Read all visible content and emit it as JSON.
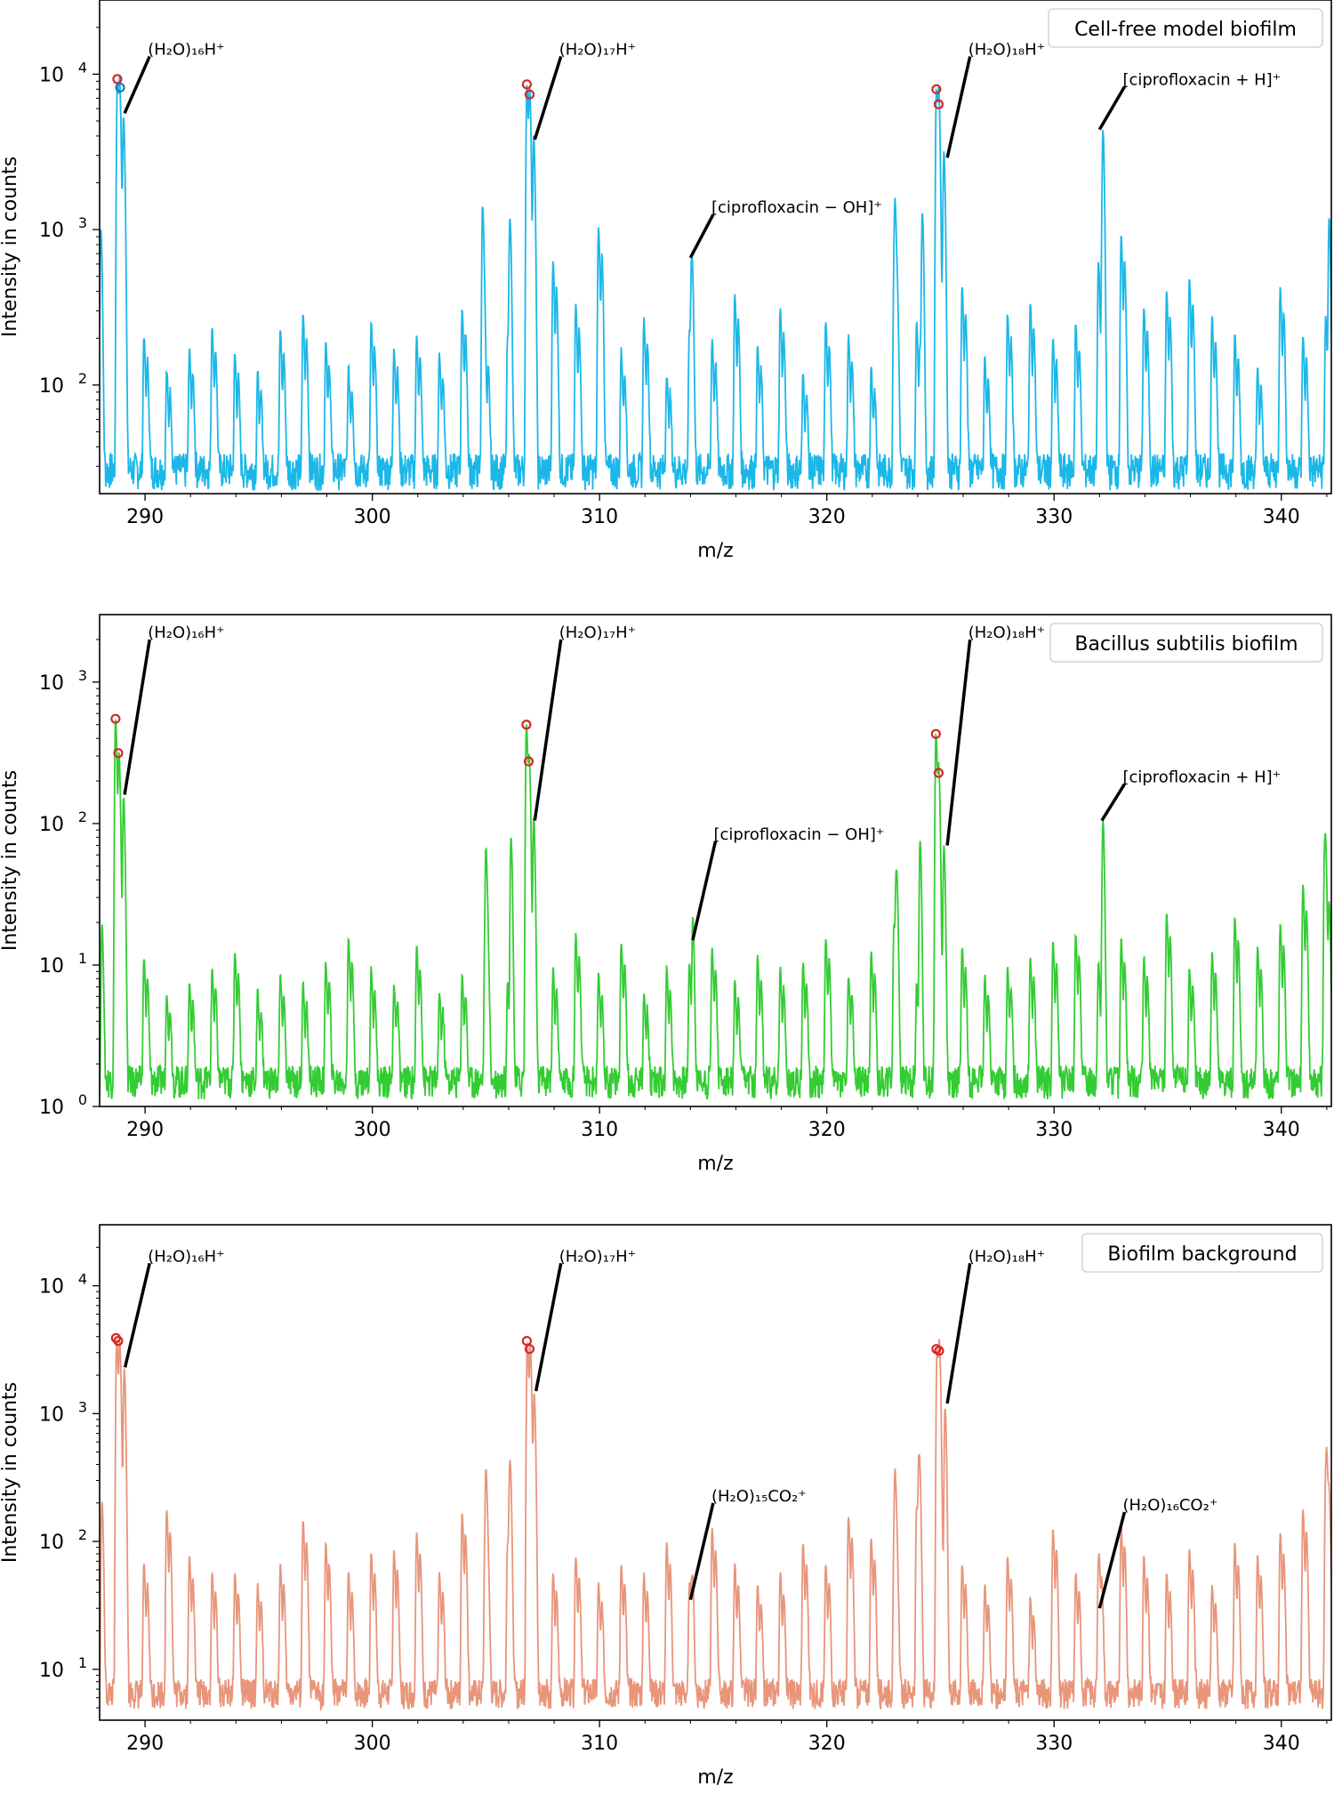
{
  "chart_data": [
    {
      "type": "line",
      "legend": "Cell-free model biofilm",
      "legend_position": "top-right",
      "xlabel": "m/z",
      "ylabel": "Intensity in counts",
      "xlim": [
        288,
        342.2
      ],
      "ylim": [
        20,
        30000
      ],
      "yscale": "log",
      "xticks": [
        "290",
        "300",
        "310",
        "320",
        "330",
        "340"
      ],
      "yticks": [
        {
          "base": "10",
          "exp": "2",
          "value": 100
        },
        {
          "base": "10",
          "exp": "3",
          "value": 1000
        },
        {
          "base": "10",
          "exp": "4",
          "value": 10000
        }
      ],
      "color": "#1bb7e8",
      "baseline": 28,
      "noise_pattern": [
        230,
        180,
        95,
        140,
        210,
        130,
        90,
        200,
        260,
        160,
        100,
        220,
        150,
        180,
        130,
        280,
        150,
        170,
        330,
        600,
        300,
        1000,
        140,
        240,
        90,
        200,
        170,
        350,
        150,
        280,
        90,
        230,
        180,
        100,
        440,
        230,
        620,
        400,
        120,
        260,
        310,
        170,
        220,
        600,
        900,
        290,
        370,
        460,
        250,
        180,
        100,
        400,
        180,
        250,
        1000
      ],
      "peaks": [
        {
          "x": 288.05,
          "y": 1000
        },
        {
          "x": 288.78,
          "y": 9000
        },
        {
          "x": 288.88,
          "y": 8000
        },
        {
          "x": 289.05,
          "y": 5200
        },
        {
          "x": 304.85,
          "y": 1400
        },
        {
          "x": 306.05,
          "y": 1100
        },
        {
          "x": 306.8,
          "y": 8500
        },
        {
          "x": 306.92,
          "y": 7500
        },
        {
          "x": 307.1,
          "y": 3800
        },
        {
          "x": 314.05,
          "y": 600
        },
        {
          "x": 323.0,
          "y": 1300
        },
        {
          "x": 324.2,
          "y": 1250
        },
        {
          "x": 324.82,
          "y": 8000
        },
        {
          "x": 324.92,
          "y": 6500
        },
        {
          "x": 325.15,
          "y": 2900
        },
        {
          "x": 332.15,
          "y": 4100
        },
        {
          "x": 342.1,
          "y": 1000
        }
      ],
      "markers": [
        {
          "x": 288.78,
          "y": 9300,
          "color": "#d62728"
        },
        {
          "x": 288.9,
          "y": 8200,
          "color": "#1f77b4"
        },
        {
          "x": 306.8,
          "y": 8600,
          "color": "#d62728"
        },
        {
          "x": 306.92,
          "y": 7400,
          "color": "#d62728"
        },
        {
          "x": 324.82,
          "y": 8000,
          "color": "#d62728"
        },
        {
          "x": 324.92,
          "y": 6400,
          "color": "#d62728"
        }
      ],
      "annotations": [
        {
          "text": "(H₂O)₁₆H⁺",
          "x": 289.1,
          "y": 5600,
          "tx": 290.2,
          "ty": 13000
        },
        {
          "text": "(H₂O)₁₇H⁺",
          "x": 307.15,
          "y": 3800,
          "tx": 308.3,
          "ty": 13000
        },
        {
          "text": "(H₂O)₁₈H⁺",
          "x": 325.3,
          "y": 2900,
          "tx": 326.3,
          "ty": 13000
        },
        {
          "text": "[ciprofloxacin − OH]⁺",
          "x": 314.0,
          "y": 660,
          "tx": 315.0,
          "ty": 1250
        },
        {
          "text": "[ciprofloxacin + H]⁺",
          "x": 332.0,
          "y": 4400,
          "tx": 333.1,
          "ty": 8300
        }
      ]
    },
    {
      "type": "line",
      "legend": "Bacillus subtilis biofilm",
      "legend_position": "top-right",
      "xlabel": "m/z",
      "ylabel": "Intensity in counts",
      "xlim": [
        288,
        342.2
      ],
      "ylim": [
        1,
        3000
      ],
      "yscale": "log",
      "xticks": [
        "290",
        "300",
        "310",
        "320",
        "330",
        "340"
      ],
      "yticks": [
        {
          "base": "10",
          "exp": "0",
          "value": 1
        },
        {
          "base": "10",
          "exp": "1",
          "value": 10
        },
        {
          "base": "10",
          "exp": "2",
          "value": 100
        },
        {
          "base": "10",
          "exp": "3",
          "value": 1000
        }
      ],
      "color": "#33cc33",
      "baseline": 1.5,
      "noise_pattern": [
        7,
        10,
        5,
        6,
        8,
        11,
        5,
        7,
        6,
        9,
        14,
        8,
        6,
        12,
        5,
        7,
        10,
        6,
        12,
        8,
        15,
        7,
        13,
        5,
        8,
        9,
        12,
        6,
        10,
        8,
        9,
        14,
        7,
        11,
        18,
        6,
        9,
        12,
        7,
        8,
        10,
        13,
        15,
        9,
        14,
        10,
        22,
        8,
        11,
        20,
        12,
        18,
        35,
        40
      ],
      "peaks": [
        {
          "x": 288.1,
          "y": 18
        },
        {
          "x": 288.7,
          "y": 550
        },
        {
          "x": 288.85,
          "y": 310
        },
        {
          "x": 289.05,
          "y": 150
        },
        {
          "x": 305.0,
          "y": 60
        },
        {
          "x": 306.1,
          "y": 75
        },
        {
          "x": 306.78,
          "y": 500
        },
        {
          "x": 306.9,
          "y": 270
        },
        {
          "x": 307.1,
          "y": 100
        },
        {
          "x": 314.1,
          "y": 14
        },
        {
          "x": 323.05,
          "y": 40
        },
        {
          "x": 324.1,
          "y": 70
        },
        {
          "x": 324.8,
          "y": 430
        },
        {
          "x": 324.92,
          "y": 230
        },
        {
          "x": 325.15,
          "y": 65
        },
        {
          "x": 332.15,
          "y": 100
        },
        {
          "x": 341.9,
          "y": 62
        }
      ],
      "markers": [
        {
          "x": 288.7,
          "y": 550,
          "color": "#d62728"
        },
        {
          "x": 288.82,
          "y": 315,
          "color": "#d62728"
        },
        {
          "x": 306.78,
          "y": 500,
          "color": "#d62728"
        },
        {
          "x": 306.88,
          "y": 275,
          "color": "#d62728"
        },
        {
          "x": 324.8,
          "y": 430,
          "color": "#d62728"
        },
        {
          "x": 324.92,
          "y": 228,
          "color": "#d62728"
        }
      ],
      "annotations": [
        {
          "text": "(H₂O)₁₆H⁺",
          "x": 289.1,
          "y": 160,
          "tx": 290.2,
          "ty": 2000
        },
        {
          "text": "(H₂O)₁₇H⁺",
          "x": 307.15,
          "y": 105,
          "tx": 308.3,
          "ty": 2000
        },
        {
          "text": "(H₂O)₁₈H⁺",
          "x": 325.3,
          "y": 70,
          "tx": 326.3,
          "ty": 2000
        },
        {
          "text": "[ciprofloxacin − OH]⁺",
          "x": 314.1,
          "y": 15,
          "tx": 315.1,
          "ty": 75
        },
        {
          "text": "[ciprofloxacin + H]⁺",
          "x": 332.1,
          "y": 105,
          "tx": 333.1,
          "ty": 190
        }
      ]
    },
    {
      "type": "line",
      "legend": "Biofilm background",
      "legend_position": "top-right",
      "xlabel": "m/z",
      "ylabel": "Intensity in counts",
      "xlim": [
        288,
        342.2
      ],
      "ylim": [
        4,
        30000
      ],
      "yscale": "log",
      "xticks": [
        "290",
        "300",
        "310",
        "320",
        "330",
        "340"
      ],
      "yticks": [
        {
          "base": "10",
          "exp": "1",
          "value": 10
        },
        {
          "base": "10",
          "exp": "2",
          "value": 100
        },
        {
          "base": "10",
          "exp": "3",
          "value": 1000
        },
        {
          "base": "10",
          "exp": "4",
          "value": 10000
        }
      ],
      "color": "#e8957a",
      "baseline": 6.5,
      "noise_pattern": [
        90,
        60,
        170,
        70,
        50,
        50,
        40,
        60,
        140,
        90,
        50,
        75,
        80,
        110,
        50,
        160,
        60,
        90,
        35,
        50,
        70,
        40,
        60,
        50,
        90,
        40,
        120,
        60,
        40,
        50,
        90,
        60,
        150,
        100,
        70,
        180,
        50,
        60,
        40,
        70,
        30,
        120,
        50,
        60,
        130,
        70,
        50,
        80,
        40,
        90,
        70,
        110,
        170,
        320
      ],
      "peaks": [
        {
          "x": 288.1,
          "y": 200
        },
        {
          "x": 288.75,
          "y": 3800
        },
        {
          "x": 288.88,
          "y": 3600
        },
        {
          "x": 289.08,
          "y": 2200
        },
        {
          "x": 305.0,
          "y": 330
        },
        {
          "x": 306.05,
          "y": 400
        },
        {
          "x": 306.82,
          "y": 3600
        },
        {
          "x": 306.95,
          "y": 3200
        },
        {
          "x": 307.12,
          "y": 1400
        },
        {
          "x": 314.05,
          "y": 32
        },
        {
          "x": 323.0,
          "y": 320
        },
        {
          "x": 324.05,
          "y": 420
        },
        {
          "x": 324.85,
          "y": 3200
        },
        {
          "x": 324.95,
          "y": 3200
        },
        {
          "x": 325.2,
          "y": 1100
        },
        {
          "x": 332.0,
          "y": 28
        },
        {
          "x": 342.0,
          "y": 320
        }
      ],
      "markers": [
        {
          "x": 288.72,
          "y": 3900,
          "color": "#d62728"
        },
        {
          "x": 288.82,
          "y": 3700,
          "color": "#d62728"
        },
        {
          "x": 306.8,
          "y": 3700,
          "color": "#d62728"
        },
        {
          "x": 306.92,
          "y": 3200,
          "color": "#d62728"
        },
        {
          "x": 324.82,
          "y": 3200,
          "color": "#d62728"
        },
        {
          "x": 324.94,
          "y": 3100,
          "color": "#d62728"
        }
      ],
      "annotations": [
        {
          "text": "(H₂O)₁₆H⁺",
          "x": 289.12,
          "y": 2300,
          "tx": 290.2,
          "ty": 15000
        },
        {
          "text": "(H₂O)₁₇H⁺",
          "x": 307.2,
          "y": 1500,
          "tx": 308.3,
          "ty": 15000
        },
        {
          "text": "(H₂O)₁₈H⁺",
          "x": 325.3,
          "y": 1200,
          "tx": 326.3,
          "ty": 15000
        },
        {
          "text": "(H₂O)₁₅CO₂⁺",
          "x": 314.0,
          "y": 35,
          "tx": 315.0,
          "ty": 200
        },
        {
          "text": "(H₂O)₁₆CO₂⁺",
          "x": 332.0,
          "y": 30,
          "tx": 333.1,
          "ty": 170
        }
      ]
    }
  ]
}
